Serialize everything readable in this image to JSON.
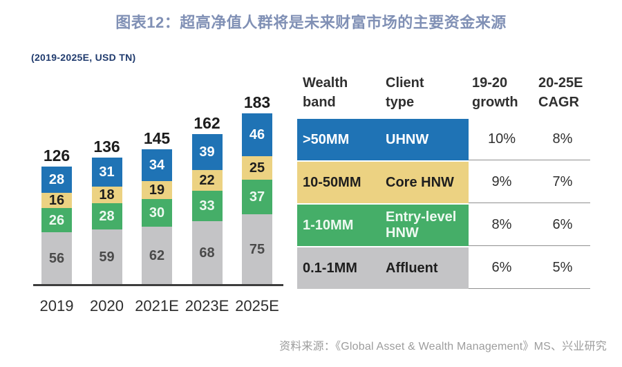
{
  "header": {
    "title": "图表12：超高净值人群将是未来财富市场的主要资金来源"
  },
  "chart": {
    "units_label": "(2019-2025E, USD TN)"
  },
  "chart_data": {
    "type": "bar",
    "stacked": true,
    "title": "超高净值人群将是未来财富市场的主要资金来源",
    "units": "USD TN",
    "categories": [
      "2019",
      "2020",
      "2021E",
      "2023E",
      "2025E"
    ],
    "series": [
      {
        "key": "affluent",
        "name": "Affluent (0.1-1MM)",
        "color": "#c4c4c6",
        "label_color": "#4a4a4a",
        "values": [
          56,
          59,
          62,
          68,
          75
        ]
      },
      {
        "key": "entry-level-hnw",
        "name": "Entry-level HNW (1-10MM)",
        "color": "#45ae68",
        "label_color": "#eef9f1",
        "values": [
          26,
          28,
          30,
          33,
          37
        ]
      },
      {
        "key": "core-hnw",
        "name": "Core HNW (10-50MM)",
        "color": "#ecd282",
        "label_color": "#1e1e1e",
        "values": [
          16,
          18,
          19,
          22,
          25
        ]
      },
      {
        "key": "uhnw",
        "name": "UHNW (>50MM)",
        "color": "#1f73b5",
        "label_color": "#ffffff",
        "values": [
          28,
          31,
          34,
          39,
          46
        ]
      }
    ],
    "totals": [
      126,
      136,
      145,
      162,
      183
    ],
    "ylim": [
      0,
      190
    ],
    "legend_position": "none (colors keyed to table rows at right)"
  },
  "table": {
    "headers": [
      "Wealth\nband",
      "Client\ntype",
      "19-20\ngrowth",
      "20-25E\nCAGR"
    ],
    "rows": [
      {
        "key": "uhnw",
        "wealth_band": ">50MM",
        "client_type": "UHNW",
        "growth_19_20": "10%",
        "cagr_20_25e": "8%",
        "color": "#1f73b5",
        "text_color": "#ffffff"
      },
      {
        "key": "core-hnw",
        "wealth_band": "10-50MM",
        "client_type": "Core HNW",
        "growth_19_20": "9%",
        "cagr_20_25e": "7%",
        "color": "#ecd282",
        "text_color": "#1e1e1e"
      },
      {
        "key": "entry-level-hnw",
        "wealth_band": "1-10MM",
        "client_type": "Entry-level\nHNW",
        "growth_19_20": "8%",
        "cagr_20_25e": "6%",
        "color": "#45ae68",
        "text_color": "#eef9f1"
      },
      {
        "key": "affluent",
        "wealth_band": "0.1-1MM",
        "client_type": "Affluent",
        "growth_19_20": "6%",
        "cagr_20_25e": "5%",
        "color": "#c4c4c6",
        "text_color": "#1e1e1e"
      }
    ]
  },
  "footer": {
    "source": "资料来源：《Global Asset & Wealth Management》MS、兴业研究"
  },
  "colors": {
    "title": "#8090b5",
    "subtitle": "#1f3a6d",
    "axis": "#3d3d3d",
    "source_text": "#9c9c9c",
    "row_divider": "#8f8f8f"
  }
}
